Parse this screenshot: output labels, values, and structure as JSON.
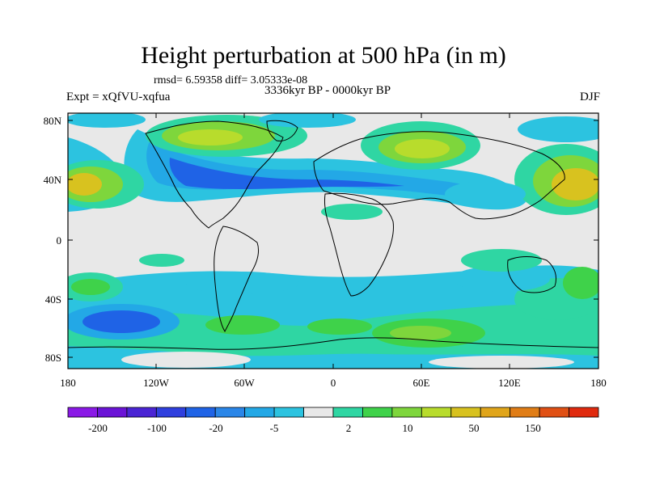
{
  "title": "Height perturbation at 500 hPa (in m)",
  "stats": "rmsd= 6.59358 diff= 3.05333e-08",
  "period": "3336kyr BP - 0000kyr BP",
  "experiment": "Expt = xQfVU-xqfua",
  "season": "DJF",
  "lat_ticks": [
    "80N",
    "40N",
    "0",
    "40S",
    "80S"
  ],
  "lon_ticks": [
    "180",
    "120W",
    "60W",
    "0",
    "60E",
    "120E",
    "180"
  ],
  "colorbar": {
    "labels": [
      "-200",
      "-100",
      "-20",
      "-5",
      "2",
      "10",
      "50",
      "150"
    ],
    "colors": [
      "#8a19e6",
      "#6a13d6",
      "#4a24d4",
      "#2f3fde",
      "#1f63e6",
      "#2a86e8",
      "#23a8e6",
      "#2cc3e0",
      "#e8e8e8",
      "#2fd6a3",
      "#3fd24a",
      "#7ed63c",
      "#b8dc2c",
      "#d8c21f",
      "#e0a51a",
      "#e07d16",
      "#e05014",
      "#e02a0e"
    ]
  },
  "palette": {
    "background": "#e8e8e8",
    "neg_light": "#2cc3e0",
    "neg_mid": "#23a8e6",
    "neg_strong": "#1f63e6",
    "pos_light": "#2fd6a3",
    "pos_mid": "#3fd24a",
    "pos_strong": "#b8dc2c",
    "pos_peak": "#d8c21f"
  }
}
